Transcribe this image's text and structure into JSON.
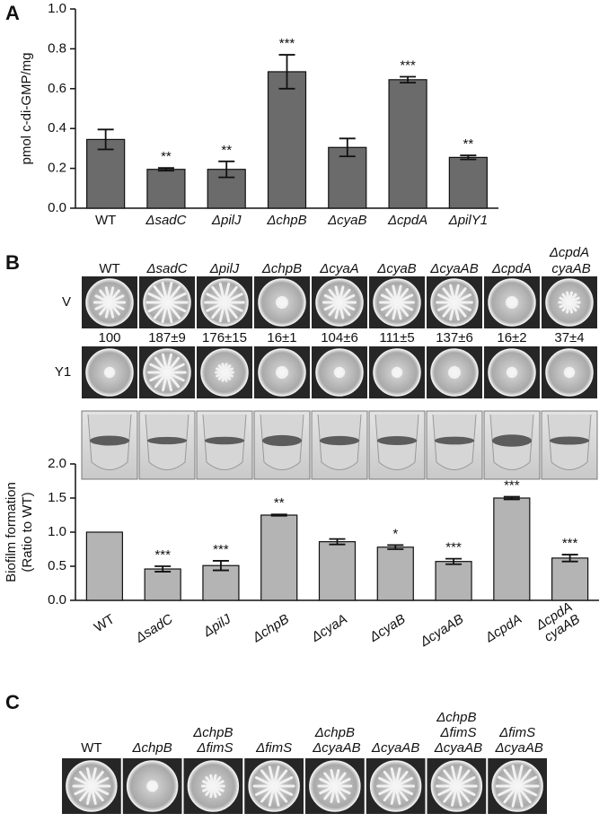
{
  "panels": [
    "A",
    "B",
    "C"
  ],
  "chart_data": [
    {
      "type": "bar",
      "y_label": "pmol c-di-GMP/mg",
      "categories": [
        "WT",
        "ΔsadC",
        "ΔpilJ",
        "ΔchpB",
        "ΔcyaB",
        "ΔcpdA",
        "ΔpilY1"
      ],
      "values": [
        0.345,
        0.195,
        0.195,
        0.685,
        0.305,
        0.645,
        0.255
      ],
      "errors": [
        0.05,
        0.007,
        0.04,
        0.085,
        0.045,
        0.015,
        0.01
      ],
      "significance": [
        null,
        "**",
        "**",
        "***",
        null,
        "***",
        "**"
      ],
      "color": "#6b6b6b",
      "ylim": [
        0,
        1.0
      ],
      "yticks": [
        {
          "value": 0,
          "label": "0.0"
        },
        0.2,
        0.4,
        0.6,
        0.8,
        {
          "value": 1.0,
          "label": "1.0"
        }
      ]
    },
    {
      "type": "bar",
      "y_label": [
        "Biofilm formation",
        "(Ratio to WT)"
      ],
      "categories": [
        "WT",
        "ΔsadC",
        "ΔpilJ",
        "ΔchpB",
        "ΔcyaA",
        "ΔcyaB",
        "ΔcyaAB",
        "ΔcpdA",
        "ΔcpdA cyaAB"
      ],
      "values": [
        1.0,
        0.46,
        0.51,
        1.25,
        0.86,
        0.78,
        0.57,
        1.5,
        0.62
      ],
      "errors": [
        null,
        0.04,
        0.07,
        0.01,
        0.04,
        0.03,
        0.04,
        0.02,
        0.05
      ],
      "significance": [
        null,
        "***",
        "***",
        "**",
        null,
        "*",
        "***",
        "***",
        "***"
      ],
      "color": "#b4b4b4",
      "ylim": [
        0,
        2.0
      ],
      "yticks": [
        {
          "value": 0,
          "label": "0.0"
        },
        0.5,
        {
          "value": 1.0,
          "label": "1.0"
        },
        1.5,
        {
          "value": 2.0,
          "label": "2.0"
        }
      ]
    }
  ],
  "plates_b": {
    "strains": [
      "WT",
      "ΔsadC",
      "ΔpilJ",
      "ΔchpB",
      "ΔcyaA",
      "ΔcyaB",
      "ΔcyaAB",
      "ΔcpdA",
      "ΔcpdA cyaAB"
    ],
    "rows": [
      "V",
      "Y1"
    ],
    "ratios": [
      "100",
      "187±9",
      "176±15",
      "16±1",
      "104±6",
      "111±5",
      "137±6",
      "16±2",
      "37±4"
    ]
  },
  "plates_c": {
    "strains": [
      "WT",
      "ΔchpB",
      "ΔchpB ΔfimS",
      "ΔfimS",
      "ΔchpB ΔcyaAB",
      "ΔcyaAB",
      "ΔchpB ΔfimS ΔcyaAB",
      "ΔfimS ΔcyaAB"
    ]
  }
}
